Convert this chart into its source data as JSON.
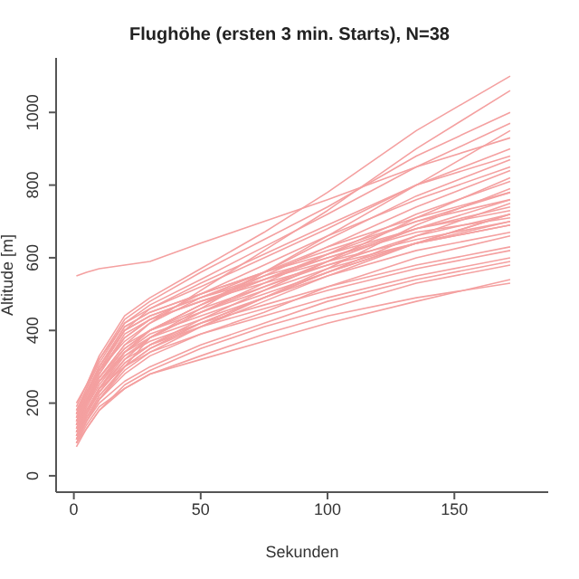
{
  "chart_data": {
    "type": "line",
    "title": "Flughöhe (ersten 3 min. Starts), N=38",
    "xlabel": "Sekunden",
    "ylabel": "Altitude [m]",
    "x": [
      1,
      5,
      10,
      20,
      30,
      50,
      75,
      100,
      135,
      172
    ],
    "color": "#f4a0a0",
    "xlim": [
      -7,
      187
    ],
    "ylim": [
      -45,
      1150
    ],
    "xticks": [
      0,
      50,
      100,
      150
    ],
    "yticks": [
      0,
      200,
      400,
      600,
      800,
      1000
    ],
    "grid": false,
    "legend": false,
    "marker": "none",
    "line_style": "solid",
    "series": [
      {
        "values": [
          150,
          200,
          260,
          340,
          400,
          470,
          540,
          610,
          700,
          780
        ]
      },
      {
        "values": [
          120,
          180,
          240,
          300,
          350,
          420,
          490,
          560,
          640,
          720
        ]
      },
      {
        "values": [
          100,
          150,
          200,
          260,
          300,
          360,
          420,
          480,
          540,
          590
        ]
      },
      {
        "values": [
          90,
          140,
          190,
          240,
          280,
          330,
          390,
          440,
          490,
          530
        ]
      },
      {
        "values": [
          550,
          560,
          570,
          580,
          590,
          640,
          700,
          760,
          850,
          930
        ]
      },
      {
        "values": [
          200,
          250,
          320,
          420,
          460,
          520,
          600,
          680,
          800,
          900
        ]
      },
      {
        "values": [
          170,
          230,
          300,
          410,
          450,
          500,
          560,
          620,
          700,
          760
        ]
      },
      {
        "values": [
          140,
          210,
          280,
          380,
          430,
          480,
          540,
          600,
          680,
          740
        ]
      },
      {
        "values": [
          110,
          160,
          220,
          300,
          380,
          460,
          560,
          660,
          800,
          950
        ]
      },
      {
        "values": [
          130,
          200,
          270,
          360,
          420,
          510,
          620,
          730,
          900,
          1060
        ]
      },
      {
        "values": [
          160,
          220,
          290,
          400,
          440,
          490,
          540,
          590,
          650,
          700
        ]
      },
      {
        "values": [
          180,
          240,
          310,
          420,
          470,
          540,
          630,
          720,
          850,
          970
        ]
      },
      {
        "values": [
          100,
          170,
          230,
          320,
          380,
          450,
          520,
          590,
          680,
          760
        ]
      },
      {
        "values": [
          90,
          130,
          180,
          250,
          290,
          350,
          410,
          460,
          530,
          580
        ]
      },
      {
        "values": [
          150,
          210,
          270,
          350,
          400,
          470,
          550,
          630,
          740,
          840
        ]
      },
      {
        "values": [
          120,
          190,
          250,
          340,
          390,
          440,
          500,
          560,
          640,
          700
        ]
      },
      {
        "values": [
          140,
          200,
          260,
          330,
          370,
          420,
          470,
          520,
          580,
          630
        ]
      },
      {
        "values": [
          170,
          240,
          320,
          430,
          480,
          560,
          650,
          740,
          880,
          1000
        ]
      },
      {
        "values": [
          110,
          170,
          230,
          310,
          360,
          430,
          510,
          590,
          710,
          820
        ]
      },
      {
        "values": [
          130,
          180,
          240,
          320,
          360,
          410,
          460,
          510,
          570,
          620
        ]
      },
      {
        "values": [
          190,
          250,
          330,
          440,
          490,
          570,
          670,
          780,
          950,
          1100
        ]
      },
      {
        "values": [
          100,
          160,
          210,
          280,
          330,
          390,
          450,
          520,
          600,
          660
        ]
      },
      {
        "values": [
          150,
          220,
          300,
          410,
          450,
          500,
          560,
          610,
          680,
          730
        ]
      },
      {
        "values": [
          120,
          180,
          240,
          330,
          380,
          450,
          530,
          610,
          720,
          810
        ]
      },
      {
        "values": [
          160,
          210,
          270,
          360,
          400,
          450,
          510,
          570,
          640,
          690
        ]
      },
      {
        "values": [
          80,
          130,
          180,
          240,
          280,
          320,
          370,
          420,
          480,
          540
        ]
      },
      {
        "values": [
          140,
          200,
          280,
          390,
          430,
          480,
          530,
          580,
          640,
          690
        ]
      },
      {
        "values": [
          110,
          170,
          240,
          340,
          400,
          470,
          560,
          650,
          770,
          870
        ]
      },
      {
        "values": [
          170,
          230,
          290,
          370,
          420,
          490,
          560,
          630,
          710,
          780
        ]
      },
      {
        "values": [
          130,
          190,
          260,
          350,
          400,
          460,
          520,
          580,
          660,
          720
        ]
      },
      {
        "values": [
          150,
          200,
          260,
          340,
          380,
          430,
          490,
          550,
          620,
          670
        ]
      },
      {
        "values": [
          100,
          150,
          210,
          290,
          340,
          410,
          490,
          570,
          690,
          790
        ]
      },
      {
        "values": [
          160,
          230,
          300,
          400,
          460,
          530,
          610,
          690,
          800,
          880
        ]
      },
      {
        "values": [
          120,
          170,
          230,
          310,
          360,
          420,
          490,
          560,
          660,
          750
        ]
      },
      {
        "values": [
          140,
          210,
          290,
          400,
          440,
          490,
          550,
          600,
          670,
          710
        ]
      },
      {
        "values": [
          90,
          150,
          210,
          300,
          350,
          410,
          480,
          550,
          640,
          720
        ]
      },
      {
        "values": [
          180,
          230,
          290,
          380,
          430,
          500,
          580,
          660,
          760,
          850
        ]
      },
      {
        "values": [
          110,
          160,
          220,
          300,
          340,
          390,
          440,
          490,
          550,
          600
        ]
      }
    ]
  }
}
